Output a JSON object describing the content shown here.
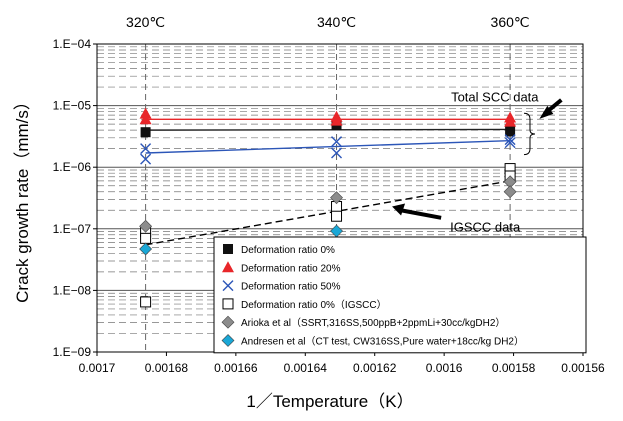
{
  "chart_data": {
    "type": "scatter",
    "title": "",
    "xlabel": "1／Temperature（K）",
    "ylabel": "Crack growth rate（mm/s）",
    "x_reversed": true,
    "xlim": [
      0.0017,
      0.00156
    ],
    "ylim": [
      1e-09,
      0.0001
    ],
    "yscale": "log",
    "x_ticks": [
      "0.0017",
      "0.00168",
      "0.00166",
      "0.00164",
      "0.00162",
      "0.0016",
      "0.00158",
      "0.00156"
    ],
    "x_tick_values": [
      0.0017,
      0.00168,
      0.00166,
      0.00164,
      0.00162,
      0.0016,
      0.00158,
      0.00156
    ],
    "y_ticks": [
      "1.E−09",
      "1.E−08",
      "1.E−07",
      "1.E−06",
      "1.E−05",
      "1.E−04"
    ],
    "y_tick_values": [
      1e-09,
      1e-08,
      1e-07,
      1e-06,
      1e-05,
      0.0001
    ],
    "top_axis_labels": [
      {
        "text": "320℃",
        "x": 0.001686
      },
      {
        "text": "340℃",
        "x": 0.001631
      },
      {
        "text": "360℃",
        "x": 0.001581
      }
    ],
    "grid": {
      "major_horizontal": true,
      "minor_horizontal": "dashed",
      "vertical_at_temperatures": "dashed"
    },
    "legend_position": "bottom-right",
    "annotations": [
      {
        "text": "Total SCC data",
        "x": 0.001598,
        "y": 1.4e-05,
        "arrow_to_x": 0.001572,
        "arrow_to_y": 6.8e-06
      },
      {
        "text": "IGSCC data",
        "x": 0.0016,
        "y": 1.1e-07,
        "arrow_from_x": 0.0016,
        "arrow_from_y": 1.3e-07,
        "arrow_to_x": 0.001615,
        "arrow_to_y": 2.3e-07
      }
    ],
    "series": [
      {
        "name": "Deformation ratio 0%",
        "marker": "filled-square",
        "color": "#111111",
        "points": [
          [
            0.001686,
            3.7e-06
          ],
          [
            0.001631,
            4.8e-06
          ],
          [
            0.001581,
            3.8e-06
          ]
        ],
        "fit": {
          "color": "#222222",
          "style": "solid",
          "points": [
            [
              0.001686,
              4e-06
            ],
            [
              0.001581,
              4.1e-06
            ]
          ]
        }
      },
      {
        "name": "Deformation ratio 20%",
        "marker": "filled-triangle",
        "color": "#e8262a",
        "points": [
          [
            0.001686,
            7.4e-06
          ],
          [
            0.001686,
            6e-06
          ],
          [
            0.001631,
            6.6e-06
          ],
          [
            0.001631,
            5.7e-06
          ],
          [
            0.001581,
            6.4e-06
          ],
          [
            0.001581,
            5.5e-06
          ]
        ],
        "fit": {
          "color": "#e8262a",
          "style": "solid",
          "points": [
            [
              0.001686,
              6e-06
            ],
            [
              0.001581,
              6e-06
            ]
          ]
        }
      },
      {
        "name": "Deformation ratio 50%",
        "marker": "x",
        "color": "#2c56b8",
        "points": [
          [
            0.001686,
            2e-06
          ],
          [
            0.001686,
            1.35e-06
          ],
          [
            0.001631,
            2.6e-06
          ],
          [
            0.001631,
            1.7e-06
          ],
          [
            0.001581,
            2.8e-06
          ],
          [
            0.001581,
            2.5e-06
          ]
        ],
        "fit": {
          "color": "#2c56b8",
          "style": "solid",
          "points": [
            [
              0.001686,
              1.7e-06
            ],
            [
              0.001581,
              2.7e-06
            ]
          ]
        }
      },
      {
        "name": "Deformation ratio 0%（IGSCC）",
        "marker": "open-square",
        "color": "#000000",
        "points": [
          [
            0.001686,
            9e-08
          ],
          [
            0.001686,
            7e-08
          ],
          [
            0.001686,
            6.5e-09
          ],
          [
            0.001631,
            2.3e-07
          ],
          [
            0.001631,
            1.6e-07
          ],
          [
            0.001581,
            9.5e-07
          ],
          [
            0.001581,
            7.2e-07
          ]
        ],
        "fit": {
          "color": "#000000",
          "style": "dashed",
          "points": [
            [
              0.001686,
              5.5e-08
            ],
            [
              0.001581,
              6e-07
            ]
          ]
        }
      },
      {
        "name": "Arioka et al（SSRT,316SS,500ppB+2ppmLi+30cc/kgDH2）",
        "marker": "diamond",
        "color": "#8c8c8c",
        "points": [
          [
            0.001686,
            1.1e-07
          ],
          [
            0.001631,
            3.2e-07
          ],
          [
            0.001581,
            5.8e-07
          ],
          [
            0.001581,
            4e-07
          ]
        ]
      },
      {
        "name": "Andresen et al（CT test, CW316SS,Pure water+18cc/kg DH2）",
        "marker": "diamond",
        "color": "#1aa7d6",
        "points": [
          [
            0.001686,
            4.7e-08
          ],
          [
            0.001631,
            9.2e-08
          ]
        ]
      }
    ]
  }
}
